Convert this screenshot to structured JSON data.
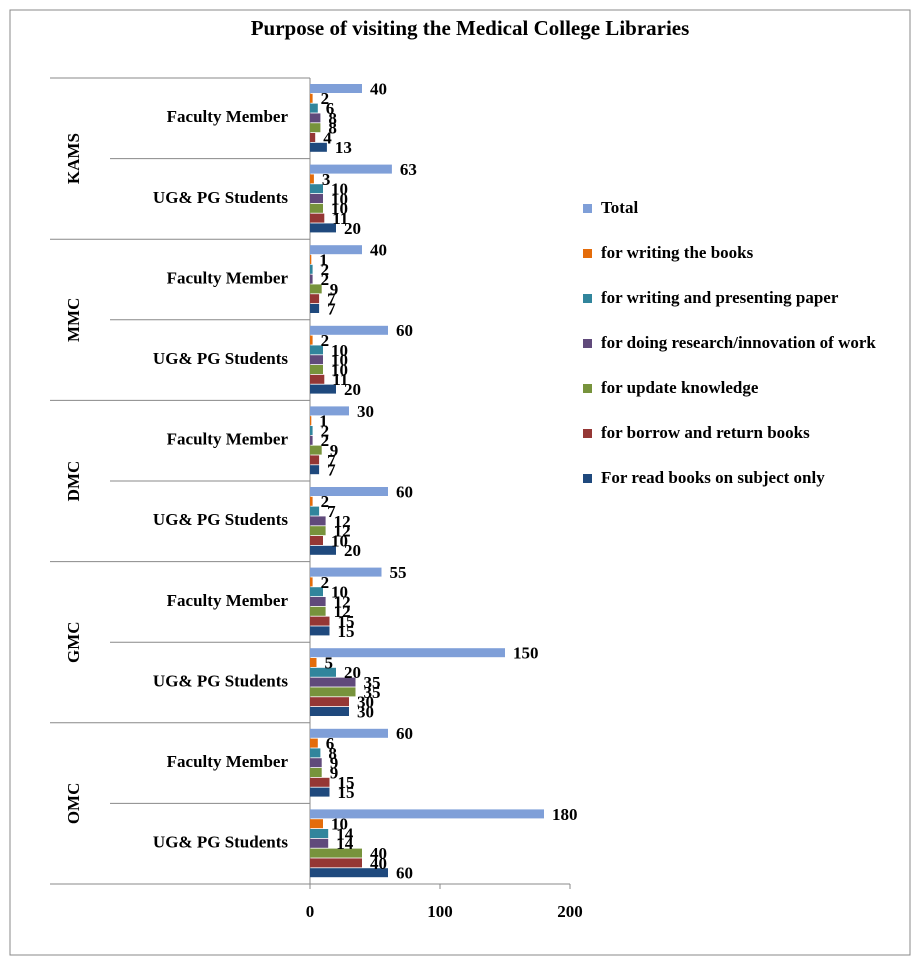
{
  "chart_data": {
    "type": "bar",
    "orientation": "horizontal",
    "title": "Purpose of visiting the Medical College Libraries",
    "groups": [
      "KAMS",
      "MMC",
      "DMC",
      "GMC",
      "OMC"
    ],
    "categories": [
      "Faculty Member",
      "UG& PG Students",
      "Faculty Member",
      "UG& PG Students",
      "Faculty Member",
      "UG& PG Students",
      "Faculty Member",
      "UG& PG Students",
      "Faculty Member",
      "UG& PG Students"
    ],
    "series": [
      {
        "name": "For read books on subject only",
        "color": "#1f497d",
        "values": [
          13,
          20,
          7,
          20,
          7,
          20,
          15,
          30,
          15,
          60
        ]
      },
      {
        "name": "for borrow and return books",
        "color": "#953735",
        "values": [
          4,
          11,
          7,
          11,
          7,
          10,
          15,
          30,
          15,
          40
        ]
      },
      {
        "name": "for update knowledge",
        "color": "#77933c",
        "values": [
          8,
          10,
          9,
          10,
          9,
          12,
          12,
          35,
          9,
          40
        ]
      },
      {
        "name": "for doing research/innovation of work",
        "color": "#604a7b",
        "values": [
          8,
          10,
          2,
          10,
          2,
          12,
          12,
          35,
          9,
          14
        ]
      },
      {
        "name": "for writing and presenting paper",
        "color": "#31859c",
        "values": [
          6,
          10,
          2,
          10,
          2,
          7,
          10,
          20,
          8,
          14
        ]
      },
      {
        "name": "for writing the books",
        "color": "#e46c0a",
        "values": [
          2,
          3,
          1,
          2,
          1,
          2,
          2,
          5,
          6,
          10
        ]
      },
      {
        "name": "Total",
        "color": "#7f9fd8",
        "values": [
          40,
          63,
          40,
          60,
          30,
          60,
          55,
          150,
          60,
          180
        ]
      }
    ],
    "xlim": [
      0,
      200
    ],
    "xticks": [
      0,
      100,
      200
    ]
  }
}
